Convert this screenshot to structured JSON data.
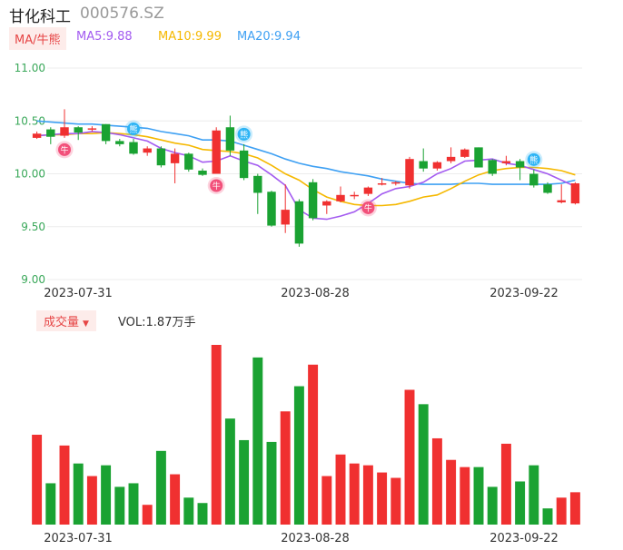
{
  "header": {
    "name": "甘化科工",
    "code": "000576.SZ"
  },
  "indicators": {
    "tag": "MA/牛熊",
    "ma5": "MA5:9.88",
    "ma10": "MA10:9.99",
    "ma20": "MA20:9.94"
  },
  "volume_panel": {
    "tag": "成交量",
    "vol_label": "VOL:1.87万手"
  },
  "chart_data": [
    {
      "type": "candlestick",
      "title": "",
      "ylim": [
        9.0,
        11.0
      ],
      "y_ticks": [
        "11.00",
        "10.50",
        "10.00",
        "9.50",
        "9.00"
      ],
      "x_ticks": [
        "2023-07-31",
        "2023-08-28",
        "2023-09-22"
      ],
      "colors": {
        "up": "#f03030",
        "down": "#1aa232",
        "ma5": "#a35bf0",
        "ma10": "#f5b800",
        "ma20": "#3ea0f3",
        "axis_text": "#3aa85a"
      },
      "candles": [
        {
          "o": 10.34,
          "h": 10.4,
          "l": 10.33,
          "c": 10.38
        },
        {
          "o": 10.42,
          "h": 10.44,
          "l": 10.28,
          "c": 10.35
        },
        {
          "o": 10.36,
          "h": 10.61,
          "l": 10.34,
          "c": 10.44
        },
        {
          "o": 10.44,
          "h": 10.45,
          "l": 10.32,
          "c": 10.39
        },
        {
          "o": 10.42,
          "h": 10.45,
          "l": 10.4,
          "c": 10.43
        },
        {
          "o": 10.47,
          "h": 10.47,
          "l": 10.28,
          "c": 10.31
        },
        {
          "o": 10.31,
          "h": 10.33,
          "l": 10.26,
          "c": 10.28
        },
        {
          "o": 10.3,
          "h": 10.33,
          "l": 10.18,
          "c": 10.19
        },
        {
          "o": 10.2,
          "h": 10.26,
          "l": 10.17,
          "c": 10.24
        },
        {
          "o": 10.24,
          "h": 10.26,
          "l": 10.06,
          "c": 10.08
        },
        {
          "o": 10.1,
          "h": 10.24,
          "l": 9.91,
          "c": 10.19
        },
        {
          "o": 10.19,
          "h": 10.2,
          "l": 10.02,
          "c": 10.04
        },
        {
          "o": 10.03,
          "h": 10.05,
          "l": 9.98,
          "c": 9.99
        },
        {
          "o": 10.0,
          "h": 10.44,
          "l": 10.0,
          "c": 10.41
        },
        {
          "o": 10.44,
          "h": 10.55,
          "l": 10.17,
          "c": 10.22
        },
        {
          "o": 10.22,
          "h": 10.28,
          "l": 9.94,
          "c": 9.96
        },
        {
          "o": 9.98,
          "h": 10.0,
          "l": 9.62,
          "c": 9.82
        },
        {
          "o": 9.83,
          "h": 9.84,
          "l": 9.5,
          "c": 9.51
        },
        {
          "o": 9.52,
          "h": 9.9,
          "l": 9.44,
          "c": 9.66
        },
        {
          "o": 9.74,
          "h": 9.76,
          "l": 9.31,
          "c": 9.34
        },
        {
          "o": 9.92,
          "h": 9.95,
          "l": 9.56,
          "c": 9.58
        },
        {
          "o": 9.7,
          "h": 9.75,
          "l": 9.62,
          "c": 9.74
        },
        {
          "o": 9.74,
          "h": 9.88,
          "l": 9.73,
          "c": 9.8
        },
        {
          "o": 9.79,
          "h": 9.83,
          "l": 9.76,
          "c": 9.8
        },
        {
          "o": 9.81,
          "h": 9.88,
          "l": 9.79,
          "c": 9.87
        },
        {
          "o": 9.9,
          "h": 9.96,
          "l": 9.89,
          "c": 9.91
        },
        {
          "o": 9.91,
          "h": 9.93,
          "l": 9.89,
          "c": 9.92
        },
        {
          "o": 9.89,
          "h": 10.16,
          "l": 9.86,
          "c": 10.14
        },
        {
          "o": 10.12,
          "h": 10.24,
          "l": 10.02,
          "c": 10.05
        },
        {
          "o": 10.05,
          "h": 10.12,
          "l": 10.03,
          "c": 10.11
        },
        {
          "o": 10.12,
          "h": 10.25,
          "l": 10.1,
          "c": 10.16
        },
        {
          "o": 10.16,
          "h": 10.24,
          "l": 10.15,
          "c": 10.23
        },
        {
          "o": 10.25,
          "h": 10.25,
          "l": 10.06,
          "c": 10.06
        },
        {
          "o": 10.13,
          "h": 10.14,
          "l": 9.98,
          "c": 10.0
        },
        {
          "o": 10.1,
          "h": 10.17,
          "l": 10.08,
          "c": 10.12
        },
        {
          "o": 10.12,
          "h": 10.14,
          "l": 9.94,
          "c": 10.06
        },
        {
          "o": 10.0,
          "h": 10.04,
          "l": 9.87,
          "c": 9.89
        },
        {
          "o": 9.9,
          "h": 9.92,
          "l": 9.81,
          "c": 9.82
        },
        {
          "o": 9.73,
          "h": 9.9,
          "l": 9.72,
          "c": 9.75
        },
        {
          "o": 9.72,
          "h": 9.92,
          "l": 9.71,
          "c": 9.91
        }
      ],
      "ma5": [
        10.36,
        10.37,
        10.38,
        10.38,
        10.4,
        10.39,
        10.37,
        10.34,
        10.31,
        10.24,
        10.2,
        10.17,
        10.11,
        10.12,
        10.17,
        10.12,
        10.08,
        9.99,
        9.89,
        9.66,
        9.58,
        9.57,
        9.6,
        9.64,
        9.72,
        9.81,
        9.86,
        9.88,
        9.92,
        10.0,
        10.05,
        10.12,
        10.13,
        10.14,
        10.1,
        10.08,
        10.04,
        10.0,
        9.94,
        9.88
      ],
      "ma10": [
        10.36,
        10.37,
        10.37,
        10.38,
        10.38,
        10.39,
        10.38,
        10.37,
        10.35,
        10.32,
        10.29,
        10.27,
        10.23,
        10.22,
        10.21,
        10.19,
        10.15,
        10.08,
        10.0,
        9.94,
        9.85,
        9.78,
        9.74,
        9.71,
        9.7,
        9.7,
        9.71,
        9.74,
        9.78,
        9.8,
        9.86,
        9.93,
        9.99,
        10.03,
        10.05,
        10.06,
        10.06,
        10.05,
        10.03,
        9.99
      ],
      "ma20": [
        10.5,
        10.49,
        10.48,
        10.47,
        10.47,
        10.46,
        10.45,
        10.44,
        10.43,
        10.4,
        10.38,
        10.36,
        10.32,
        10.32,
        10.31,
        10.27,
        10.23,
        10.19,
        10.14,
        10.1,
        10.07,
        10.05,
        10.02,
        10.0,
        9.98,
        9.95,
        9.93,
        9.91,
        9.9,
        9.9,
        9.9,
        9.91,
        9.91,
        9.9,
        9.9,
        9.9,
        9.9,
        9.9,
        9.91,
        9.94
      ],
      "markers": [
        {
          "index": 2,
          "text": "牛",
          "kind": "bull",
          "position": "below"
        },
        {
          "index": 7,
          "text": "熊",
          "kind": "bear",
          "position": "above"
        },
        {
          "index": 13,
          "text": "牛",
          "kind": "bull",
          "position": "below"
        },
        {
          "index": 15,
          "text": "熊",
          "kind": "bear",
          "position": "above"
        },
        {
          "index": 24,
          "text": "牛",
          "kind": "bull",
          "position": "below"
        },
        {
          "index": 36,
          "text": "熊",
          "kind": "bear",
          "position": "above"
        }
      ]
    },
    {
      "type": "bar",
      "title": "成交量",
      "ylim": [
        0,
        1
      ],
      "values": [
        0.5,
        0.23,
        0.44,
        0.34,
        0.27,
        0.33,
        0.21,
        0.23,
        0.11,
        0.41,
        0.28,
        0.15,
        0.12,
        1.0,
        0.59,
        0.47,
        0.93,
        0.46,
        0.63,
        0.77,
        0.89,
        0.27,
        0.39,
        0.34,
        0.33,
        0.29,
        0.26,
        0.75,
        0.67,
        0.48,
        0.36,
        0.32,
        0.32,
        0.21,
        0.45,
        0.24,
        0.33,
        0.09,
        0.15,
        0.18
      ],
      "up": [
        true,
        false,
        true,
        false,
        true,
        false,
        false,
        false,
        true,
        false,
        true,
        false,
        false,
        true,
        false,
        false,
        false,
        false,
        true,
        false,
        true,
        true,
        true,
        true,
        true,
        true,
        true,
        true,
        false,
        true,
        true,
        true,
        false,
        false,
        true,
        false,
        false,
        false,
        true,
        true
      ],
      "x_ticks": [
        "2023-07-31",
        "2023-08-28",
        "2023-09-22"
      ]
    }
  ]
}
